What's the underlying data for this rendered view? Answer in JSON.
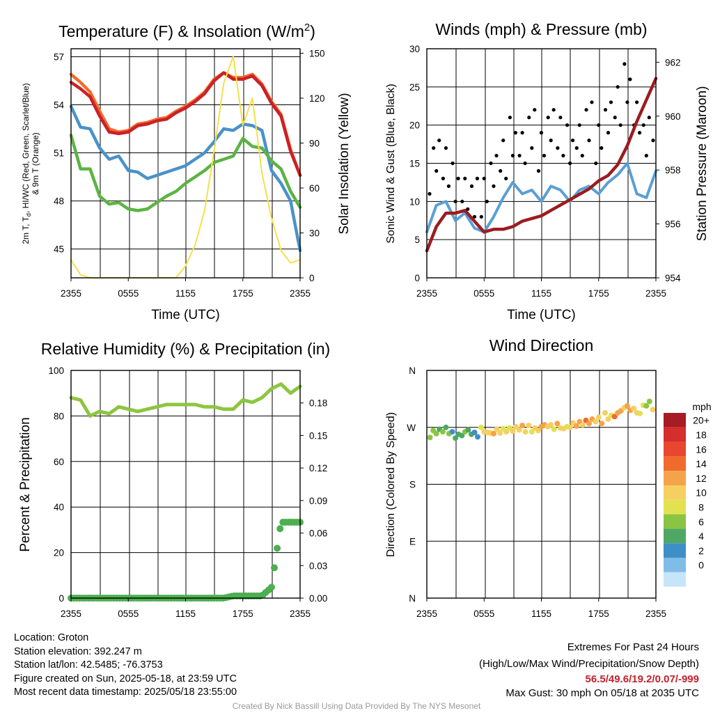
{
  "footer": {
    "location": "Location: Groton",
    "elevation": "Station elevation: 392.247 m",
    "latlon": "Station lat/lon: 42.5485; -76.3753",
    "created": "Figure created on Sun, 2025-05-18, at 23:59 UTC",
    "recent": "Most recent data timestamp: 2025/05/18 23:55:00",
    "extremes_title": "Extremes For Past 24 Hours",
    "extremes_legend": "(High/Low/Max Wind/Precipitation/Snow Depth)",
    "extremes_values": "56.5/49.6/19.2/0.07/-999",
    "max_gust": "Max Gust: 30 mph On 05/18 at 2035 UTC",
    "credit": "Created By Nick Bassill Using Data Provided By The NYS Mesonet"
  },
  "colors": {
    "temperature": "#cc2127",
    "heat_index": "#f26b2b",
    "dewpoint": "#5bb443",
    "temp_9m": "#4a92c9",
    "insolation": "#f5e04a",
    "wind": "#5a9fd4",
    "gust": "#000000",
    "pressure": "#9b1c1f",
    "rh": "#8cc63f",
    "precip": "#4caf50"
  },
  "chart_data": [
    {
      "type": "line",
      "title": "Temperature (F) & Insolation (W/m2)",
      "title_main": "Temperature (F) & Insolation (W/m",
      "title_sup": "2",
      "title_end": ")",
      "xlabel": "Time (UTC)",
      "ylabel_left_1": "2m T, T",
      "ylabel_left_sub": "d",
      "ylabel_left_2": ", HI/WC (Red, Green, Scarlet/Blue)",
      "ylabel_left_3": "& 9m T (Orange)",
      "ylabel_right": "Solar Insolation (Yellow)",
      "xticks": [
        "2355",
        "0555",
        "1155",
        "1755",
        "2355"
      ],
      "ylim": [
        43.2,
        57.5
      ],
      "yticks": [
        45,
        48,
        51,
        54,
        57
      ],
      "y2lim": [
        0,
        153
      ],
      "y2ticks": [
        0,
        30,
        60,
        90,
        120,
        150
      ],
      "x": [
        0,
        1,
        2,
        3,
        4,
        5,
        6,
        7,
        8,
        9,
        10,
        11,
        12,
        13,
        14,
        15,
        16,
        17,
        18,
        19,
        20,
        21,
        22,
        23,
        24
      ],
      "series": [
        {
          "key": "heat_index",
          "axis": "left",
          "values": [
            55.9,
            55.4,
            54.8,
            53.6,
            52.5,
            52.3,
            52.4,
            52.8,
            52.9,
            53.1,
            53.2,
            53.6,
            53.9,
            54.3,
            54.8,
            55.6,
            56.0,
            55.7,
            55.7,
            55.9,
            55.3,
            54.2,
            53.4,
            51.2,
            49.6
          ]
        },
        {
          "key": "temperature",
          "axis": "left",
          "values": [
            55.4,
            55.0,
            54.5,
            53.3,
            52.3,
            52.2,
            52.3,
            52.7,
            52.8,
            53.0,
            53.1,
            53.5,
            53.8,
            54.2,
            54.7,
            55.5,
            56.0,
            55.6,
            55.6,
            55.8,
            55.2,
            54.1,
            53.3,
            51.1,
            49.6
          ]
        },
        {
          "key": "temp_9m",
          "axis": "left",
          "values": [
            53.9,
            52.6,
            52.5,
            51.3,
            50.6,
            50.8,
            49.9,
            49.8,
            49.4,
            49.6,
            49.8,
            50.0,
            50.2,
            50.6,
            51.0,
            51.7,
            52.5,
            52.4,
            52.8,
            52.7,
            52.4,
            49.9,
            49.1,
            48.0,
            44.9
          ]
        },
        {
          "key": "dewpoint",
          "axis": "left",
          "values": [
            52.1,
            50.0,
            50.0,
            48.3,
            47.8,
            47.9,
            47.5,
            47.4,
            47.5,
            47.9,
            48.3,
            48.6,
            49.1,
            49.5,
            49.9,
            50.4,
            50.6,
            50.8,
            51.9,
            51.4,
            51.3,
            50.5,
            50.0,
            48.6,
            47.6
          ]
        },
        {
          "key": "insolation",
          "axis": "right",
          "values": [
            12,
            2,
            0,
            0,
            0,
            0,
            0,
            0,
            0,
            0,
            0,
            0,
            8,
            22,
            45,
            85,
            130,
            148,
            102,
            120,
            70,
            40,
            18,
            10,
            12
          ]
        }
      ]
    },
    {
      "type": "line",
      "title": "Winds (mph) & Pressure (mb)",
      "xlabel": "Time (UTC)",
      "ylabel_left": "Sonic Wind & Gust (Blue, Black)",
      "ylabel_right": "Station Pressure (Maroon)",
      "xticks": [
        "2355",
        "0555",
        "1155",
        "1755",
        "2355"
      ],
      "ylim": [
        0,
        30
      ],
      "yticks": [
        0,
        5,
        10,
        15,
        20,
        25,
        30
      ],
      "y2lim": [
        954,
        962.5
      ],
      "y2ticks": [
        954,
        956,
        958,
        960,
        962
      ],
      "x": [
        0,
        1,
        2,
        3,
        4,
        5,
        6,
        7,
        8,
        9,
        10,
        11,
        12,
        13,
        14,
        15,
        16,
        17,
        18,
        19,
        20,
        21,
        22,
        23,
        24
      ],
      "series": [
        {
          "key": "wind",
          "axis": "left",
          "values": [
            6.0,
            9.5,
            10.0,
            7.5,
            8.5,
            6.5,
            6.0,
            8.0,
            10.5,
            12.5,
            11.0,
            11.5,
            10.0,
            12.0,
            11.5,
            10.0,
            11.5,
            12.0,
            11.0,
            12.5,
            13.5,
            15.0,
            11.0,
            10.5,
            14.0
          ]
        },
        {
          "key": "gust",
          "axis": "left",
          "values": [
            12,
            15,
            14,
            12,
            12,
            11,
            11,
            13,
            15,
            18,
            18,
            20,
            17,
            19,
            18,
            17,
            19,
            21,
            18,
            20,
            22,
            25,
            22,
            19,
            21
          ]
        },
        {
          "key": "pressure",
          "axis": "right",
          "values": [
            955.0,
            955.9,
            956.4,
            956.4,
            956.5,
            956.1,
            955.7,
            955.8,
            955.8,
            955.9,
            956.1,
            956.2,
            956.3,
            956.5,
            956.7,
            956.9,
            957.1,
            957.3,
            957.6,
            957.8,
            958.2,
            958.9,
            959.8,
            960.6,
            961.4
          ]
        }
      ]
    },
    {
      "type": "line",
      "title": "Relative Humidity (%) & Precipitation (in)",
      "xlabel": "",
      "ylabel_left": "Percent & Precipitation",
      "xticks": [
        "2355",
        "0555",
        "1155",
        "1755",
        "2355"
      ],
      "ylim": [
        0,
        100
      ],
      "yticks": [
        0,
        20,
        40,
        60,
        80,
        100
      ],
      "y2lim": [
        0,
        0.21
      ],
      "y2ticks": [
        "0.00",
        "0.03",
        "0.06",
        "0.09",
        "0.12",
        "0.15",
        "0.18"
      ],
      "x": [
        0,
        1,
        2,
        3,
        4,
        5,
        6,
        7,
        8,
        9,
        10,
        11,
        12,
        13,
        14,
        15,
        16,
        17,
        18,
        19,
        20,
        21,
        22,
        23,
        24
      ],
      "series": [
        {
          "key": "rh",
          "axis": "left",
          "values": [
            88,
            87,
            80,
            82,
            81,
            84,
            83,
            82,
            83,
            84,
            85,
            85,
            85,
            85,
            84,
            84,
            83,
            83,
            87,
            86,
            88,
            92,
            94,
            90,
            93
          ]
        },
        {
          "key": "precip",
          "axis": "right",
          "values": [
            0,
            0,
            0,
            0,
            0,
            0,
            0,
            0,
            0,
            0,
            0,
            0,
            0,
            0,
            0,
            0,
            0,
            0.002,
            0.002,
            0.002,
            0.002,
            0.01,
            0.07,
            0.07,
            0.07
          ]
        }
      ]
    },
    {
      "type": "scatter",
      "title": "Wind Direction",
      "ylabel_left": "Direction (Colored By Speed)",
      "xticks": [
        "2355",
        "0555",
        "1155",
        "1755",
        "2355"
      ],
      "yticks": [
        "N",
        "E",
        "S",
        "W",
        "N"
      ],
      "ylim": [
        0,
        360
      ],
      "legend_title": "mph",
      "legend_labels": [
        "20+",
        "18",
        "16",
        "14",
        "12",
        "10",
        "8",
        "6",
        "4",
        "2",
        "0"
      ],
      "legend_colors": [
        "#a51c24",
        "#d62d2d",
        "#e8462e",
        "#f06a2c",
        "#f5a34a",
        "#f5d060",
        "#e2e251",
        "#89c542",
        "#4ea864",
        "#3f8fc7",
        "#7fbde7",
        "#c5e6f8"
      ],
      "x": [
        0,
        1,
        2,
        3,
        4,
        5,
        6,
        7,
        8,
        9,
        10,
        11,
        12,
        13,
        14,
        15,
        16,
        17,
        18,
        19,
        20,
        21,
        22,
        23,
        24
      ],
      "direction": [
        256,
        262,
        265,
        258,
        262,
        258,
        266,
        264,
        265,
        266,
        268,
        268,
        270,
        270,
        272,
        274,
        276,
        278,
        281,
        288,
        292,
        300,
        296,
        308,
        302
      ],
      "speed": [
        7,
        8,
        8,
        6,
        7,
        5,
        12,
        13,
        12,
        12,
        13,
        12,
        14,
        12,
        13,
        12,
        14,
        15,
        13,
        12,
        15,
        14,
        12,
        9,
        14
      ]
    }
  ]
}
